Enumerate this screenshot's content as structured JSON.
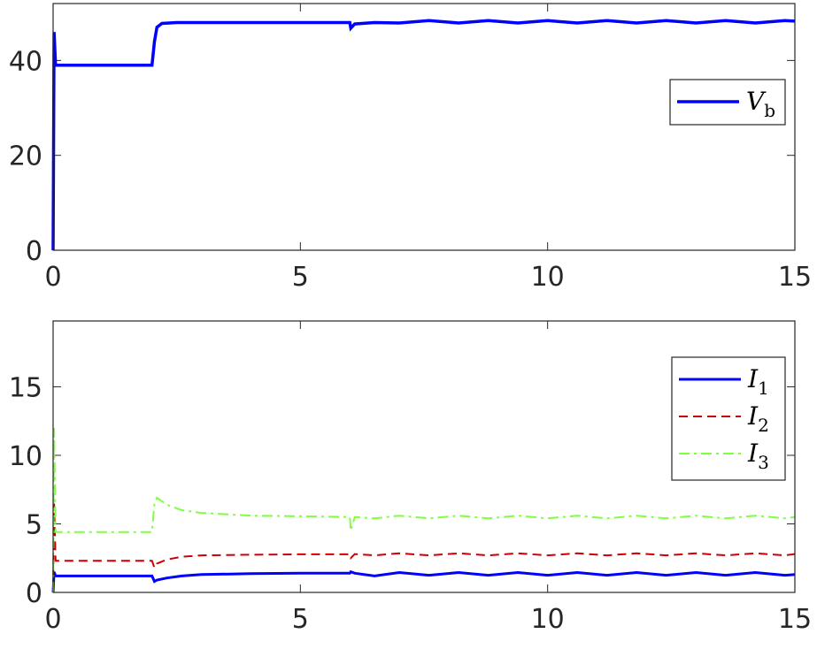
{
  "chart_data": [
    {
      "type": "line",
      "x": [
        0,
        0.02,
        0.05,
        0.1,
        1.0,
        2.0,
        2.05,
        2.1,
        2.2,
        2.5,
        3,
        4,
        5,
        6,
        6.02,
        6.1,
        6.5,
        7.0,
        7.6,
        8.2,
        8.8,
        9.4,
        10.0,
        10.6,
        11.2,
        11.8,
        12.4,
        13.0,
        13.6,
        14.2,
        14.8,
        15
      ],
      "series": [
        {
          "name": "V_b",
          "color": "#0000ff",
          "linestyle": "solid",
          "linewidth": 3.5,
          "values": [
            0,
            46,
            39,
            39,
            39,
            39,
            44,
            47,
            47.8,
            48,
            48,
            48,
            48,
            48,
            46.8,
            47.7,
            48,
            47.9,
            48.4,
            47.9,
            48.4,
            47.9,
            48.4,
            47.9,
            48.4,
            47.9,
            48.4,
            47.9,
            48.4,
            47.9,
            48.4,
            48.3
          ]
        }
      ],
      "xlim": [
        0,
        15
      ],
      "ylim": [
        0,
        52
      ],
      "xticks": [
        0,
        5,
        10,
        15
      ],
      "yticks": [
        0,
        20,
        40
      ],
      "legend": "upper right"
    },
    {
      "type": "line",
      "x": [
        0,
        0.02,
        0.05,
        1,
        2,
        2.05,
        2.1,
        2.3,
        2.6,
        3,
        4,
        5,
        6,
        6.02,
        6.1,
        6.5,
        7.0,
        7.6,
        8.2,
        8.8,
        9.4,
        10.0,
        10.6,
        11.2,
        11.8,
        12.4,
        13.0,
        13.6,
        14.2,
        14.8,
        15
      ],
      "series": [
        {
          "name": "I_1",
          "color": "#0000ff",
          "linestyle": "solid",
          "linewidth": 3,
          "values": [
            0,
            1.5,
            1.2,
            1.2,
            1.2,
            0.8,
            0.9,
            1.05,
            1.2,
            1.3,
            1.37,
            1.4,
            1.4,
            1.5,
            1.4,
            1.2,
            1.45,
            1.25,
            1.45,
            1.25,
            1.45,
            1.25,
            1.45,
            1.25,
            1.45,
            1.25,
            1.45,
            1.25,
            1.45,
            1.25,
            1.3
          ]
        },
        {
          "name": "I_2",
          "color": "#cc0000",
          "linestyle": "dashed",
          "linewidth": 2,
          "values": [
            0,
            6.5,
            2.3,
            2.3,
            2.3,
            1.8,
            2.1,
            2.4,
            2.6,
            2.7,
            2.75,
            2.78,
            2.78,
            2.5,
            2.8,
            2.7,
            2.85,
            2.7,
            2.85,
            2.7,
            2.85,
            2.7,
            2.85,
            2.7,
            2.85,
            2.7,
            2.85,
            2.7,
            2.85,
            2.7,
            2.8
          ]
        },
        {
          "name": "I_3",
          "color": "#80ff40",
          "linestyle": "dashdot",
          "linewidth": 2,
          "values": [
            0,
            12,
            4.4,
            4.4,
            4.4,
            6.5,
            6.9,
            6.4,
            6.0,
            5.8,
            5.6,
            5.55,
            5.5,
            4.5,
            5.5,
            5.4,
            5.6,
            5.4,
            5.6,
            5.4,
            5.6,
            5.4,
            5.6,
            5.4,
            5.6,
            5.4,
            5.6,
            5.4,
            5.6,
            5.4,
            5.5
          ]
        }
      ],
      "xlim": [
        0,
        15
      ],
      "ylim": [
        0,
        19.8
      ],
      "xticks": [
        0,
        5,
        10,
        15
      ],
      "yticks": [
        0,
        5,
        10,
        15
      ],
      "legend": "upper right"
    }
  ]
}
